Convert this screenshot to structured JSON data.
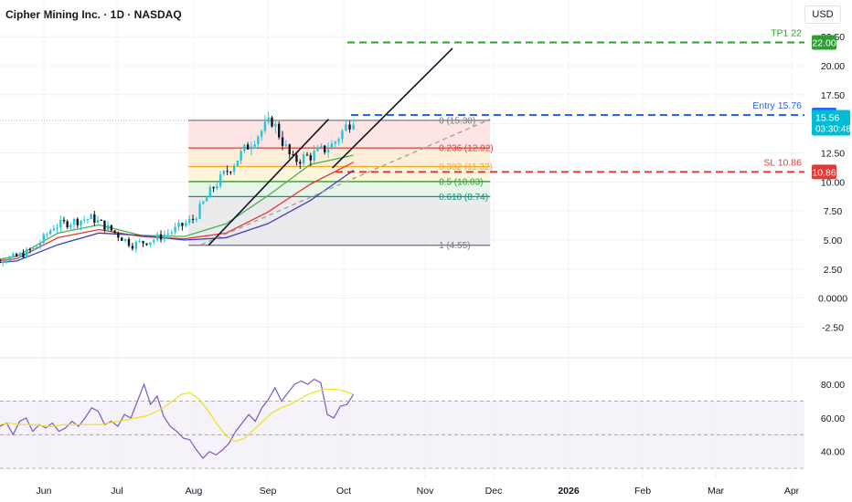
{
  "header": {
    "title": "Cipher Mining Inc. · 1D · NASDAQ",
    "currency": "USD"
  },
  "colors": {
    "up": "#26c6da",
    "down": "#131722",
    "accent_blue": "#2962ff",
    "tp_green": "#2e9e32",
    "sl_red": "#e53935",
    "current_price_bg": "#00bcd4"
  },
  "chart_data": [
    {
      "type": "candlestick",
      "title": "Cipher Mining Inc. · 1D · NASDAQ",
      "y_axis_labels": [
        "22.50",
        "20.00",
        "17.50",
        "15.00",
        "12.50",
        "10.00",
        "7.50",
        "5.00",
        "2.50",
        "0.0000",
        "-2.50"
      ],
      "x_axis_labels": [
        "Jun",
        "Jul",
        "Aug",
        "Sep",
        "Oct",
        "Nov",
        "Dec",
        "2026",
        "Feb",
        "Mar",
        "Apr"
      ],
      "ylim": [
        -3.8,
        23.3
      ],
      "candles_summary": {
        "start_month": "late May",
        "end": "early Oct",
        "approx_path": [
          3.0,
          3.3,
          3.5,
          4.2,
          6.2,
          6.6,
          6.9,
          5.8,
          4.6,
          5.0,
          5.8,
          6.8,
          9.5,
          11.5,
          13.6,
          15.3,
          11.8,
          12.3,
          13.2,
          15.56
        ]
      },
      "moving_averages": [
        {
          "color": "#4caf50",
          "approx_path": [
            3.0,
            3.6,
            5.6,
            6.3,
            5.4,
            5.3,
            6.4,
            8.8,
            11.5,
            12.3
          ]
        },
        {
          "color": "#e53935",
          "approx_path": [
            3.0,
            3.4,
            5.2,
            5.9,
            5.3,
            5.1,
            5.6,
            7.4,
            9.8,
            11.7
          ]
        },
        {
          "color": "#3f3fbf",
          "approx_path": [
            2.9,
            3.2,
            4.6,
            5.6,
            5.4,
            5.0,
            5.2,
            6.4,
            8.4,
            11.0
          ]
        }
      ],
      "fibonacci": [
        {
          "label": "0 (15.30)",
          "value": 15.3,
          "color": "#787b86"
        },
        {
          "label": "0.236 (12.92)",
          "value": 12.92,
          "color": "#e53935"
        },
        {
          "label": "0.382 (11.32)",
          "value": 11.32,
          "color": "#f9a825"
        },
        {
          "label": "0.5 (10.03)",
          "value": 10.03,
          "color": "#2e9e32"
        },
        {
          "label": "0.618 (8.74)",
          "value": 8.74,
          "color": "#089981"
        },
        {
          "label": "1 (4.55)",
          "value": 4.55,
          "color": "#787b86"
        }
      ],
      "levels": [
        {
          "name": "TP1 22",
          "value": 22.0,
          "price_label": "22.00",
          "color": "#2e9e32"
        },
        {
          "name": "Entry 15.76",
          "value": 15.76,
          "price_label": "15.76",
          "color": "#2962ff"
        },
        {
          "name": "SL 10.86",
          "value": 10.86,
          "price_label": "10.86",
          "color": "#e53935"
        }
      ],
      "current_price": {
        "value": 15.56,
        "label": "15.56",
        "countdown": "03:30:48"
      }
    },
    {
      "type": "line",
      "title": "",
      "y_axis_labels": [
        "80.00",
        "60.00",
        "40.00"
      ],
      "ylim": [
        29,
        86
      ],
      "bands": [
        70,
        50,
        30
      ],
      "series": [
        {
          "color": "#7e57c2",
          "approx_values": [
            55,
            57,
            50,
            58,
            60,
            52,
            56,
            54,
            57,
            52,
            54,
            58,
            55,
            60,
            66,
            64,
            56,
            58,
            55,
            62,
            60,
            70,
            80,
            68,
            73,
            61,
            55,
            52,
            48,
            47,
            41,
            36,
            40,
            38,
            41,
            45,
            52,
            57,
            62,
            58,
            66,
            71,
            78,
            70,
            75,
            80,
            82,
            80,
            83,
            81,
            62,
            60,
            67,
            68,
            74
          ]
        },
        {
          "color": "#f4e01c",
          "approx_values": [
            56,
            57,
            56,
            56,
            56,
            55,
            55,
            56,
            56,
            56,
            56,
            56,
            57,
            58,
            59,
            60,
            61,
            63,
            66,
            70,
            74,
            75,
            71,
            64,
            56,
            49,
            46,
            48,
            53,
            58,
            63,
            66,
            68,
            71,
            74,
            76,
            77,
            77,
            76,
            74
          ]
        }
      ]
    }
  ]
}
